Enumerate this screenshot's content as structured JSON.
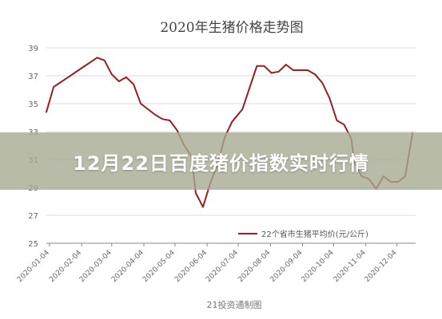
{
  "banner": {
    "text": "12月22日百度猪价指数实时行情"
  },
  "credit": "21投资通制图",
  "colors": {
    "line": "#9b1c22",
    "grid": "#dedede",
    "axis": "#888888",
    "text": "#666666",
    "banner": "#a5aa91"
  },
  "chart_data": {
    "type": "line",
    "title": "2020年生猪价格走势图",
    "ylim": [
      25,
      39
    ],
    "yticks": [
      25,
      27,
      29,
      31,
      33,
      35,
      37,
      39
    ],
    "grid": true,
    "legend": "bottom-right",
    "xticks": [
      "2020-01-04",
      "2020-02-04",
      "2020-03-04",
      "2020-04-04",
      "2020-05-04",
      "2020-06-04",
      "2020-07-04",
      "2020-08-04",
      "2020-09-04",
      "2020-10-04",
      "2020-11-04",
      "2020-12-04"
    ],
    "series": [
      {
        "name": "22个省市生猪平均价(元/公斤)",
        "points": [
          [
            "2020-01-01",
            34.4
          ],
          [
            "2020-01-08",
            36.2
          ],
          [
            "2020-01-22",
            36.9
          ],
          [
            "2020-02-05",
            37.6
          ],
          [
            "2020-02-19",
            38.3
          ],
          [
            "2020-02-26",
            38.1
          ],
          [
            "2020-03-04",
            37.1
          ],
          [
            "2020-03-11",
            36.6
          ],
          [
            "2020-03-18",
            36.9
          ],
          [
            "2020-03-25",
            36.4
          ],
          [
            "2020-04-01",
            35.0
          ],
          [
            "2020-04-15",
            34.2
          ],
          [
            "2020-04-22",
            33.9
          ],
          [
            "2020-04-29",
            33.8
          ],
          [
            "2020-05-06",
            33.1
          ],
          [
            "2020-05-13",
            32.0
          ],
          [
            "2020-05-20",
            31.2
          ],
          [
            "2020-05-24",
            28.6
          ],
          [
            "2020-05-31",
            27.6
          ],
          [
            "2020-06-07",
            29.3
          ],
          [
            "2020-06-14",
            30.6
          ],
          [
            "2020-06-21",
            32.6
          ],
          [
            "2020-06-28",
            33.7
          ],
          [
            "2020-07-08",
            34.6
          ],
          [
            "2020-07-22",
            37.7
          ],
          [
            "2020-07-29",
            37.7
          ],
          [
            "2020-08-05",
            37.2
          ],
          [
            "2020-08-12",
            37.3
          ],
          [
            "2020-08-19",
            37.8
          ],
          [
            "2020-08-26",
            37.4
          ],
          [
            "2020-09-02",
            37.4
          ],
          [
            "2020-09-09",
            37.4
          ],
          [
            "2020-09-16",
            37.1
          ],
          [
            "2020-09-23",
            36.5
          ],
          [
            "2020-09-30",
            35.4
          ],
          [
            "2020-10-07",
            33.8
          ],
          [
            "2020-10-14",
            33.5
          ],
          [
            "2020-10-21",
            32.5
          ],
          [
            "2020-10-24",
            30.8
          ],
          [
            "2020-10-31",
            29.8
          ],
          [
            "2020-11-07",
            29.6
          ],
          [
            "2020-11-14",
            28.9
          ],
          [
            "2020-11-21",
            29.8
          ],
          [
            "2020-11-28",
            29.4
          ],
          [
            "2020-12-05",
            29.4
          ],
          [
            "2020-12-12",
            29.8
          ],
          [
            "2020-12-19",
            32.9
          ]
        ]
      }
    ]
  }
}
